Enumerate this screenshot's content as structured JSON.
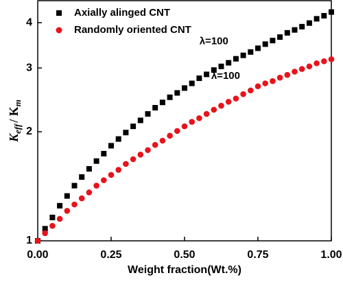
{
  "chart_data": {
    "type": "scatter",
    "xlabel": "Weight fraction(Wt.%)",
    "ylabel": [
      "K",
      "eff",
      "/ K",
      "m"
    ],
    "y_scale": "log",
    "x": [
      0,
      0.025,
      0.05,
      0.075,
      0.1,
      0.125,
      0.15,
      0.175,
      0.2,
      0.225,
      0.25,
      0.275,
      0.3,
      0.325,
      0.35,
      0.375,
      0.4,
      0.425,
      0.45,
      0.475,
      0.5,
      0.525,
      0.55,
      0.575,
      0.6,
      0.625,
      0.65,
      0.675,
      0.7,
      0.725,
      0.75,
      0.775,
      0.8,
      0.825,
      0.85,
      0.875,
      0.9,
      0.925,
      0.95,
      0.975,
      1.0
    ],
    "series": [
      {
        "name": "Axially alinged CNT",
        "color": "#000000",
        "marker": "square",
        "values": [
          1.0,
          1.08,
          1.16,
          1.25,
          1.33,
          1.42,
          1.5,
          1.58,
          1.66,
          1.74,
          1.83,
          1.91,
          1.99,
          2.07,
          2.15,
          2.24,
          2.33,
          2.41,
          2.49,
          2.56,
          2.64,
          2.72,
          2.81,
          2.88,
          2.96,
          3.03,
          3.1,
          3.18,
          3.25,
          3.32,
          3.4,
          3.49,
          3.57,
          3.65,
          3.75,
          3.82,
          3.9,
          3.99,
          4.1,
          4.18,
          4.28
        ]
      },
      {
        "name": "Randomly oriented CNT",
        "color": "#e8131b",
        "marker": "circle",
        "values": [
          1.0,
          1.05,
          1.1,
          1.15,
          1.21,
          1.26,
          1.31,
          1.36,
          1.42,
          1.47,
          1.52,
          1.57,
          1.63,
          1.68,
          1.73,
          1.78,
          1.84,
          1.89,
          1.95,
          2.01,
          2.07,
          2.13,
          2.18,
          2.24,
          2.3,
          2.36,
          2.42,
          2.47,
          2.54,
          2.6,
          2.67,
          2.72,
          2.76,
          2.82,
          2.87,
          2.93,
          2.98,
          3.03,
          3.09,
          3.13,
          3.17
        ]
      }
    ],
    "annotations": [
      {
        "text": "λ=100",
        "x": 0.6,
        "y": 3.55
      },
      {
        "text": "λ=100",
        "x": 0.64,
        "y": 2.85
      }
    ],
    "xlim": [
      0,
      1.0
    ],
    "ylim": [
      1,
      4.6
    ],
    "xticks": [
      {
        "value": 0,
        "label": "0.00"
      },
      {
        "value": 0.25,
        "label": "0.25"
      },
      {
        "value": 0.5,
        "label": "0.50"
      },
      {
        "value": 0.75,
        "label": "0.75"
      },
      {
        "value": 1.0,
        "label": "1.00"
      }
    ],
    "yticks": [
      1,
      2,
      3,
      4
    ],
    "legend": "upper-left"
  }
}
